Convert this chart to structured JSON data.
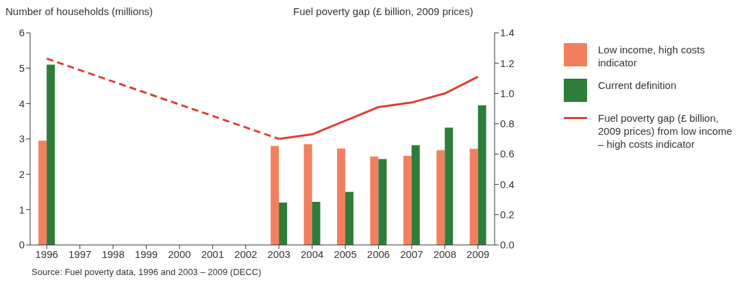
{
  "chart_data": {
    "type": "bar",
    "ylabel": "Number of households (millions)",
    "y2label": "Fuel poverty gap (£ billion, 2009 prices)",
    "categories": [
      "1996",
      "1997",
      "1998",
      "1999",
      "2000",
      "2001",
      "2002",
      "2003",
      "2004",
      "2005",
      "2006",
      "2007",
      "2008",
      "2009"
    ],
    "series": [
      {
        "name": "Low income, high costs indicator",
        "color": "#f2805e",
        "values": [
          2.95,
          null,
          null,
          null,
          null,
          null,
          null,
          2.8,
          2.85,
          2.73,
          2.5,
          2.52,
          2.68,
          2.72
        ]
      },
      {
        "name": "Current definition",
        "color": "#2e7d3a",
        "values": [
          5.1,
          null,
          null,
          null,
          null,
          null,
          null,
          1.2,
          1.22,
          1.5,
          2.43,
          2.82,
          3.32,
          3.95
        ]
      },
      {
        "type": "line",
        "axis": "y2",
        "color": "#e03c31",
        "line_style": "dashed",
        "values": [
          1.23,
          null,
          null,
          null,
          null,
          null,
          null,
          0.7,
          null,
          null,
          null,
          null,
          null,
          null
        ]
      },
      {
        "name": "Fuel poverty gap (£ billion, 2009 prices) from low income – high costs indicator",
        "type": "line",
        "axis": "y2",
        "color": "#e03c31",
        "line_style": "solid",
        "values": [
          null,
          null,
          null,
          null,
          null,
          null,
          null,
          0.7,
          0.73,
          0.82,
          0.91,
          0.94,
          1.0,
          1.11
        ]
      }
    ],
    "ylim": [
      0,
      6
    ],
    "yticks": [
      0,
      1,
      2,
      3,
      4,
      5,
      6
    ],
    "y2lim": [
      0,
      1.4
    ],
    "y2ticks": [
      {
        "value": 0,
        "label": "0.0"
      },
      0.2,
      0.4,
      0.6,
      0.8,
      {
        "value": 1,
        "label": "1.0"
      },
      1.2,
      1.4
    ],
    "grid": false,
    "legend": "right",
    "marker": "none",
    "annotations": [
      "Source: Fuel poverty data, 1996 and 2003 – 2009 (DECC)"
    ]
  }
}
